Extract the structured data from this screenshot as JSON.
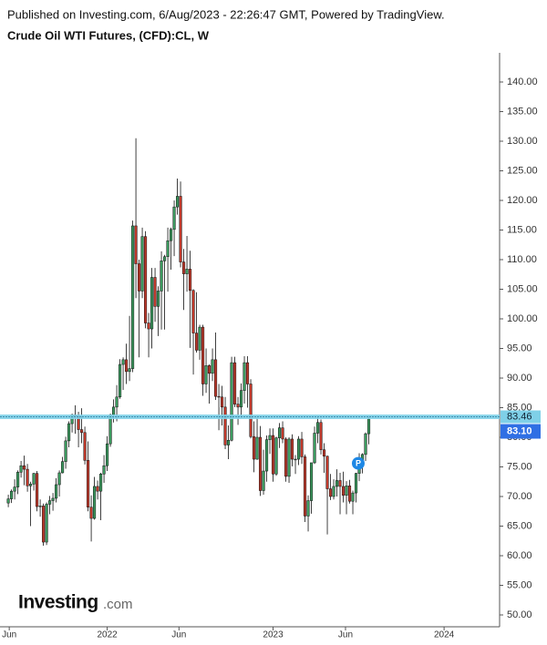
{
  "chart_data": {
    "type": "candlestick",
    "subtitle": "Published on Investing.com, 6/Aug/2023 - 22:26:47 GMT, Powered by TradingView.",
    "title": "Crude Oil WTI Futures, (CFD):CL, W",
    "logo": [
      "Investing",
      ".com"
    ],
    "annotation": "P",
    "up_color": "#3c9a5f",
    "down_color": "#c0392b",
    "open": [
      68.9,
      69.6,
      70.9,
      71.6,
      74.1,
      75.2,
      74.6,
      71.8,
      72.1,
      73.9,
      68.3,
      68.4,
      62.3,
      68.7,
      69.3,
      69.7,
      72.0,
      74.0,
      75.9,
      79.4,
      82.3,
      83.8,
      83.6,
      81.3,
      80.8,
      76.1,
      68.2,
      66.3,
      71.7,
      70.9,
      73.8,
      75.2,
      78.9,
      83.8,
      85.1,
      86.8,
      92.3,
      93.1,
      91.1,
      91.6,
      115.7,
      109.3,
      104.7,
      113.9,
      99.3,
      98.3,
      107.0,
      102.1,
      104.7,
      109.8,
      110.5,
      113.2,
      115.1,
      118.9,
      120.7,
      109.6,
      107.6,
      108.4,
      104.8,
      97.6,
      94.7,
      98.6,
      89.0,
      92.1,
      90.8,
      93.1,
      86.9,
      86.8,
      85.1,
      78.7,
      79.5,
      92.6,
      85.6,
      85.1,
      87.9,
      92.6,
      89.0,
      80.1,
      76.3,
      80.0,
      71.0,
      74.3,
      79.6,
      80.3,
      73.8,
      79.9,
      81.6,
      79.7,
      73.4,
      79.7,
      76.3,
      76.3,
      79.7,
      76.7,
      66.7,
      69.3,
      75.7,
      80.7,
      82.5,
      77.9,
      76.8,
      71.3,
      70.0,
      71.7,
      72.7,
      71.7,
      70.2,
      71.8,
      69.2,
      70.6,
      73.9,
      75.4,
      77.1,
      80.6
    ],
    "high": [
      70.3,
      71.2,
      72.9,
      74.4,
      76.0,
      76.9,
      75.5,
      72.5,
      74.0,
      74.3,
      69.5,
      68.8,
      69.0,
      70.1,
      70.6,
      73.1,
      74.4,
      76.7,
      80.1,
      82.7,
      84.0,
      85.4,
      84.3,
      84.9,
      81.8,
      79.3,
      70.2,
      73.3,
      72.7,
      74.0,
      77.0,
      80.2,
      84.0,
      86.4,
      88.8,
      93.2,
      93.5,
      95.8,
      100.5,
      116.6,
      130.5,
      110.0,
      115.4,
      114.8,
      101.0,
      108.6,
      108.6,
      105.5,
      111.4,
      110.8,
      115.4,
      115.4,
      120.0,
      123.7,
      123.2,
      111.8,
      114.0,
      111.5,
      105.0,
      104.5,
      99.0,
      99.0,
      95.0,
      92.3,
      95.0,
      97.7,
      89.0,
      88.7,
      86.8,
      82.0,
      93.6,
      93.6,
      86.8,
      89.1,
      93.7,
      93.7,
      89.8,
      82.7,
      83.3,
      81.9,
      77.9,
      80.3,
      81.5,
      81.5,
      80.1,
      82.4,
      82.7,
      80.0,
      80.0,
      80.5,
      77.0,
      80.2,
      80.9,
      77.1,
      70.2,
      75.7,
      81.8,
      83.5,
      83.0,
      79.0,
      76.9,
      73.8,
      72.9,
      74.6,
      74.0,
      74.2,
      72.6,
      72.8,
      71.0,
      74.0,
      77.3,
      77.3,
      80.8,
      83.5
    ],
    "low": [
      68.2,
      68.9,
      69.5,
      70.4,
      73.2,
      71.9,
      70.8,
      65.0,
      71.0,
      67.5,
      66.6,
      61.7,
      61.8,
      67.0,
      67.6,
      69.0,
      70.0,
      73.9,
      74.7,
      78.3,
      80.8,
      80.6,
      78.3,
      79.0,
      75.4,
      67.5,
      62.4,
      66.1,
      69.5,
      66.0,
      72.3,
      74.3,
      78.4,
      82.5,
      82.7,
      86.5,
      88.0,
      89.0,
      89.5,
      91.0,
      103.5,
      93.5,
      103.5,
      98.4,
      93.5,
      95.0,
      99.5,
      97.1,
      98.2,
      98.2,
      104.6,
      108.3,
      110.6,
      117.6,
      108.7,
      101.5,
      104.6,
      95.1,
      90.6,
      94.3,
      93.1,
      87.0,
      87.5,
      85.7,
      89.5,
      86.3,
      81.2,
      82.0,
      78.0,
      76.3,
      79.3,
      85.1,
      82.1,
      83.3,
      85.7,
      85.0,
      79.8,
      74.1,
      76.2,
      70.1,
      70.3,
      72.5,
      77.2,
      72.5,
      73.5,
      78.2,
      79.0,
      72.5,
      72.3,
      75.1,
      73.8,
      75.3,
      75.5,
      65.7,
      64.1,
      67.1,
      75.5,
      79.0,
      77.1,
      74.0,
      63.6,
      69.4,
      69.5,
      70.0,
      67.0,
      69.0,
      67.0,
      68.8,
      67.0,
      69.0,
      72.6,
      73.9,
      76.0,
      78.8
    ],
    "close": [
      69.6,
      70.9,
      71.6,
      74.1,
      75.2,
      74.6,
      71.8,
      72.1,
      73.9,
      68.3,
      68.4,
      62.3,
      68.7,
      69.3,
      69.7,
      72.0,
      74.0,
      75.9,
      79.4,
      82.3,
      83.8,
      83.6,
      81.3,
      80.8,
      76.1,
      68.2,
      66.3,
      71.7,
      70.9,
      73.8,
      75.2,
      78.9,
      83.8,
      85.1,
      86.8,
      92.3,
      93.1,
      91.1,
      91.6,
      115.7,
      109.3,
      104.7,
      113.9,
      99.3,
      98.3,
      107.0,
      102.1,
      104.7,
      109.8,
      110.5,
      113.2,
      115.1,
      118.9,
      120.7,
      109.6,
      107.6,
      108.4,
      104.8,
      97.6,
      94.7,
      98.6,
      89.0,
      92.1,
      90.8,
      93.1,
      86.9,
      86.8,
      85.1,
      78.7,
      79.5,
      92.6,
      85.6,
      85.1,
      87.9,
      92.6,
      89.0,
      80.1,
      76.3,
      80.0,
      71.0,
      74.3,
      79.6,
      80.3,
      73.8,
      79.9,
      81.6,
      79.7,
      73.4,
      79.7,
      76.3,
      76.3,
      79.7,
      76.7,
      66.7,
      69.3,
      75.7,
      80.7,
      82.5,
      77.9,
      76.8,
      71.3,
      70.0,
      71.7,
      72.7,
      71.7,
      70.2,
      71.8,
      69.2,
      70.6,
      73.9,
      75.4,
      77.1,
      80.6,
      83.1
    ],
    "level_line": 83.46,
    "level_color": "#7fd0e8",
    "last_price": {
      "value": 83.1,
      "label": "83.10"
    },
    "last_price_color": "#2f6fe4",
    "xlim": [
      -2.6,
      154
    ],
    "xticks": [
      {
        "value": 0.3,
        "label": "Jun"
      },
      {
        "value": 31,
        "label": "2022"
      },
      {
        "value": 53.5,
        "label": "Jun"
      },
      {
        "value": 83,
        "label": "2023"
      },
      {
        "value": 105.7,
        "label": "Jun"
      },
      {
        "value": 136.6,
        "label": "2024"
      }
    ],
    "ylim": [
      48,
      145
    ],
    "yticks": [
      {
        "value": 50,
        "label": "50.00"
      },
      {
        "value": 55,
        "label": "55.00"
      },
      {
        "value": 60,
        "label": "60.00"
      },
      {
        "value": 65,
        "label": "65.00"
      },
      {
        "value": 70,
        "label": "70.00"
      },
      {
        "value": 75,
        "label": "75.00"
      },
      {
        "value": 80,
        "label": "80.00"
      },
      {
        "value": 85,
        "label": "85.00"
      },
      {
        "value": 90,
        "label": "90.00"
      },
      {
        "value": 95,
        "label": "95.00"
      },
      {
        "value": 100,
        "label": "100.00"
      },
      {
        "value": 105,
        "label": "105.00"
      },
      {
        "value": 110,
        "label": "110.00"
      },
      {
        "value": 115,
        "label": "115.00"
      },
      {
        "value": 120,
        "label": "120.00"
      },
      {
        "value": 125,
        "label": "125.00"
      },
      {
        "value": 130,
        "label": "130.00"
      },
      {
        "value": 135,
        "label": "135.00"
      },
      {
        "value": 140,
        "label": "140.00"
      }
    ]
  }
}
